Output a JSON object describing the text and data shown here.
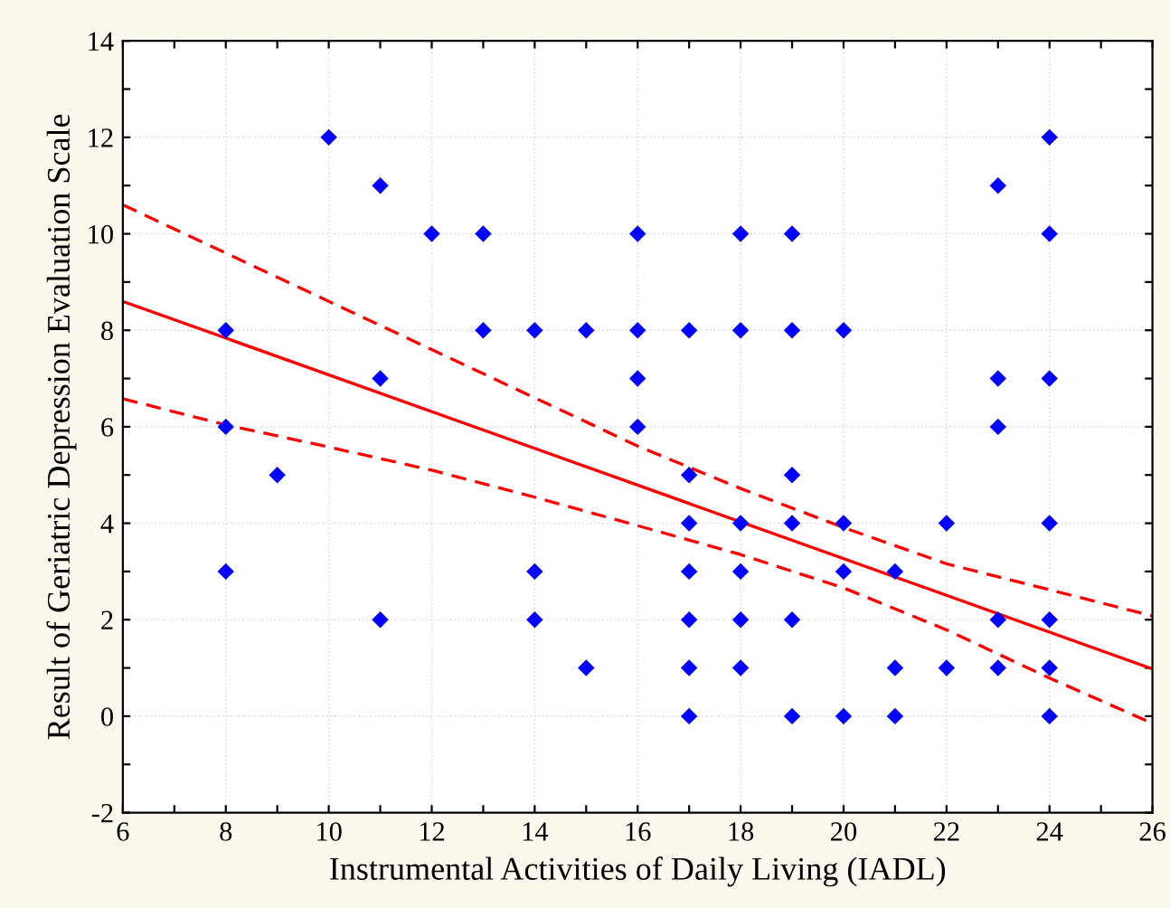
{
  "chart_data": {
    "type": "scatter",
    "xlabel": "Instrumental Activities of Daily Living (IADL)",
    "ylabel": "Result of Geriatric Depression Evaluation Scale",
    "xlim": [
      6,
      26
    ],
    "ylim": [
      -2,
      14
    ],
    "xticks": [
      6,
      {
        "value": 7,
        "label": null
      },
      8,
      {
        "value": 9,
        "label": null
      },
      10,
      {
        "value": 11,
        "label": null
      },
      12,
      {
        "value": 13,
        "label": null
      },
      14,
      {
        "value": 15,
        "label": null
      },
      16,
      {
        "value": 17,
        "label": null
      },
      18,
      {
        "value": 19,
        "label": null
      },
      20,
      {
        "value": 21,
        "label": null
      },
      22,
      {
        "value": 23,
        "label": null
      },
      24,
      {
        "value": 25,
        "label": null
      },
      26
    ],
    "yticks": [
      -2,
      {
        "value": -1,
        "label": null
      },
      0,
      {
        "value": 1,
        "label": null
      },
      2,
      {
        "value": 3,
        "label": null
      },
      4,
      {
        "value": 5,
        "label": null
      },
      6,
      {
        "value": 7,
        "label": null
      },
      8,
      {
        "value": 9,
        "label": null
      },
      10,
      {
        "value": 11,
        "label": null
      },
      12,
      {
        "value": 13,
        "label": null
      },
      14
    ],
    "grid": true,
    "series": [
      {
        "marker": "diamond",
        "color": "#0000ff",
        "x": [
          8,
          8,
          8,
          9,
          10,
          11,
          11,
          11,
          12,
          13,
          13,
          14,
          14,
          14,
          15,
          15,
          16,
          16,
          16,
          16,
          17,
          17,
          17,
          17,
          17,
          17,
          17,
          18,
          18,
          18,
          18,
          18,
          18,
          19,
          19,
          19,
          19,
          19,
          19,
          20,
          20,
          20,
          20,
          21,
          21,
          21,
          22,
          22,
          23,
          23,
          23,
          23,
          23,
          24,
          24,
          24,
          24,
          24,
          24,
          24
        ],
        "values": [
          8,
          6,
          3,
          5,
          12,
          11,
          7,
          2,
          10,
          10,
          8,
          8,
          3,
          2,
          8,
          1,
          10,
          8,
          7,
          6,
          8,
          5,
          4,
          3,
          2,
          1,
          0,
          10,
          8,
          4,
          3,
          2,
          1,
          10,
          8,
          5,
          4,
          2,
          0,
          8,
          4,
          3,
          0,
          3,
          1,
          0,
          4,
          1,
          11,
          7,
          6,
          2,
          1,
          12,
          10,
          7,
          4,
          2,
          1,
          0
        ]
      },
      {
        "type": "line",
        "line_style": "solid",
        "color": "#ff0000",
        "x": [
          6,
          26
        ],
        "values": [
          8.6,
          0.98
        ]
      },
      {
        "type": "line",
        "line_style": "dashed",
        "color": "#ff0000",
        "x": [
          6,
          8,
          10,
          12,
          14,
          16,
          18,
          20,
          22,
          24,
          26
        ],
        "values": [
          10.6,
          9.6,
          8.6,
          7.6,
          6.6,
          5.6,
          4.72,
          3.91,
          3.16,
          2.62,
          2.08
        ]
      },
      {
        "type": "line",
        "line_style": "dashed",
        "color": "#ff0000",
        "x": [
          6,
          8,
          10,
          12,
          14,
          16,
          18,
          20,
          22,
          24,
          26
        ],
        "values": [
          6.58,
          6.04,
          5.58,
          5.1,
          4.54,
          3.95,
          3.35,
          2.66,
          1.79,
          0.79,
          -0.15
        ]
      }
    ]
  }
}
